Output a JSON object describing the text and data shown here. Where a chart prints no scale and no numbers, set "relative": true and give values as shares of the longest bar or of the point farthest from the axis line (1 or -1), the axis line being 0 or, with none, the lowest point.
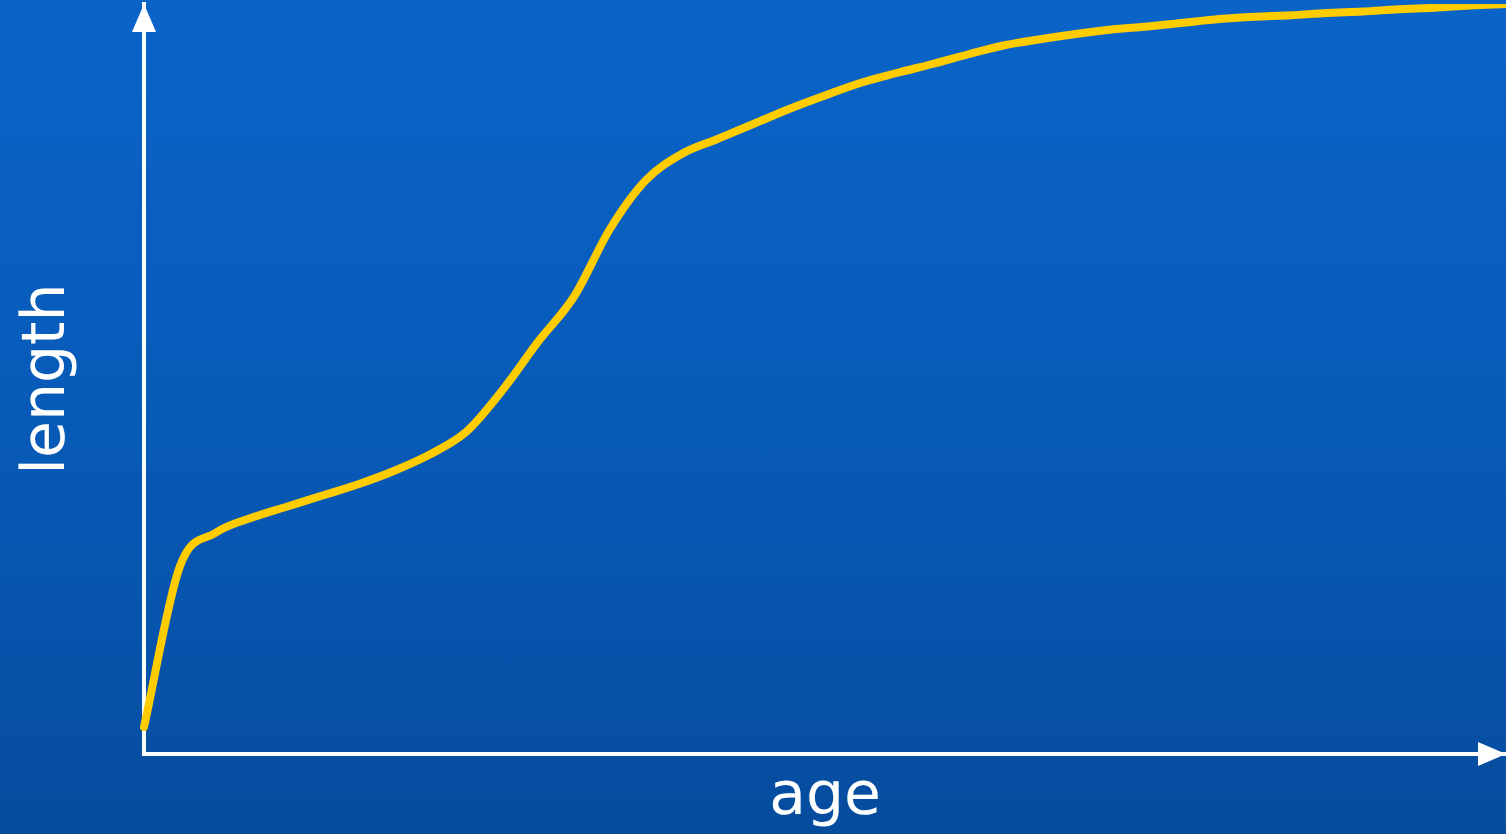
{
  "chart_data": {
    "type": "line",
    "relative": true,
    "xlabel": "age",
    "ylabel": "length",
    "marker": "none",
    "line_style": "solid",
    "grid": false,
    "legend": false,
    "categories": [
      null,
      null,
      null,
      null,
      null,
      null,
      null,
      null,
      null,
      null,
      null,
      null,
      null,
      null,
      null,
      null,
      null,
      null,
      null,
      null,
      null,
      null,
      null,
      null,
      null,
      null,
      null,
      null,
      null,
      null,
      null,
      null,
      null,
      null,
      null,
      null,
      null,
      null,
      null
    ],
    "series": [
      {
        "color": "#ffcc00",
        "values": [
          0.036,
          0.25,
          0.295,
          0.315,
          0.33,
          0.345,
          0.36,
          0.378,
          0.4,
          0.43,
          0.485,
          0.55,
          0.61,
          0.7,
          0.765,
          0.8,
          0.82,
          0.84,
          0.86,
          0.878,
          0.895,
          0.908,
          0.92,
          0.933,
          0.945,
          0.953,
          0.96,
          0.966,
          0.97,
          0.975,
          0.98,
          0.983,
          0.985,
          0.988,
          0.99,
          0.993,
          0.995,
          0.998,
          1.0
        ]
      }
    ]
  }
}
